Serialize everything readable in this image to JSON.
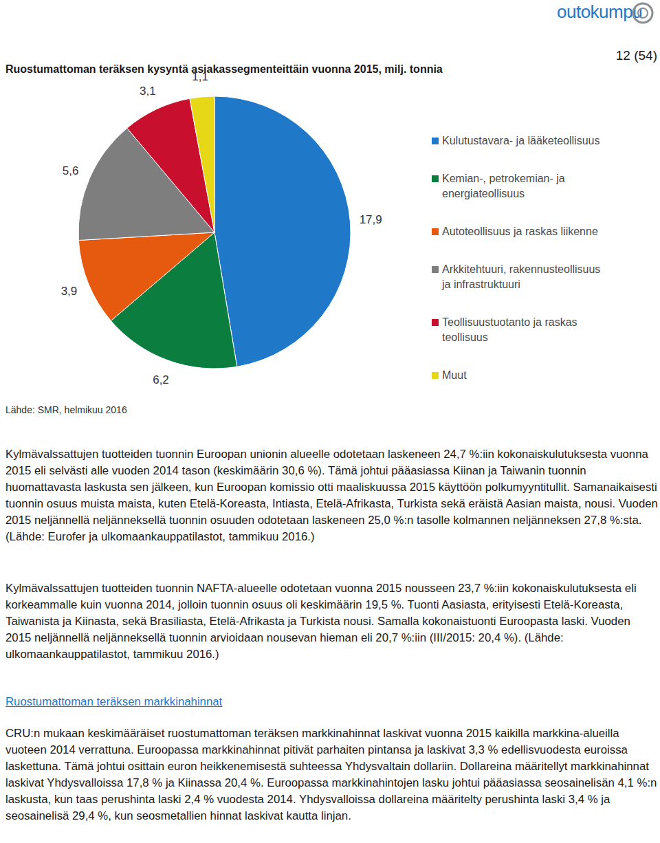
{
  "header": {
    "brand": "outokumpu",
    "page": "12 (54)"
  },
  "chart_data": {
    "type": "pie",
    "title": "Ruostumattoman teräksen kysyntä asiakassegmenteittäin vuonna 2015, milj. tonnia",
    "categories": [
      "Kulutustavara- ja lääketeollisuus",
      "Kemian-, petrokemian- ja energiateollisuus",
      "Autoteollisuus ja raskas liikenne",
      "Arkkitehtuuri, rakennusteollisuus ja infrastruktuuri",
      "Teollisuustuotanto ja raskas teollisuus",
      "Muut"
    ],
    "values": [
      17.9,
      6.2,
      3.9,
      5.6,
      3.1,
      1.1
    ],
    "value_labels": [
      "17,9",
      "6,2",
      "3,9",
      "5,6",
      "3,1",
      "1,1"
    ],
    "colors": [
      "#1f78c8",
      "#0b7d3e",
      "#e55a0e",
      "#7e7e7e",
      "#c8102e",
      "#e6d817"
    ],
    "data_labels": true,
    "legend": "right"
  },
  "chart_source": "Lähde: SMR, helmikuu 2016",
  "section1": {
    "paragraphs": [
      "Kylmävalssattujen tuotteiden tuonnin Euroopan unionin alueelle odotetaan laskeneen 24,7 %:iin kokonaiskulutuksesta vuonna 2015 eli selvästi alle vuoden 2014 tason (keskimäärin 30,6 %). Tämä johtui pääasiassa Kiinan ja Taiwanin tuonnin huomattavasta laskusta sen jälkeen, kun Euroopan komissio otti maaliskuussa 2015 käyttöön polkumyyntitullit. Samanaikaisesti tuonnin osuus muista maista, kuten Etelä-Koreasta, Intiasta, Etelä-Afrikasta, Turkista sekä eräistä Aasian maista, nousi. Vuoden 2015 neljännellä neljänneksellä tuonnin osuuden odotetaan laskeneen 25,0 %:n tasolle kolmannen neljänneksen 27,8 %:sta. (Lähde: Eurofer ja ulkomaankauppatilastot, tammikuu 2016.)",
      "Kylmävalssattujen tuotteiden tuonnin NAFTA-alueelle odotetaan vuonna 2015 nousseen 23,7 %:iin kokonaiskulutuksesta eli korkeammalle kuin vuonna 2014, jolloin tuonnin osuus oli keskimäärin 19,5 %. Tuonti Aasiasta, erityisesti Etelä-Koreasta, Taiwanista ja Kiinasta, sekä Brasiliasta, Etelä-Afrikasta ja Turkista nousi. Samalla kokonaistuonti Euroopasta laski. Vuoden 2015 neljännellä neljänneksellä tuonnin arvioidaan nousevan hieman eli 20,7 %:iin (III/2015: 20,4 %). (Lähde: ulkomaankauppatilastot, tammikuu 2016.)"
    ]
  },
  "section2": {
    "heading": "Ruostumattoman teräksen markkinahinnat",
    "paragraphs": [
      "CRU:n mukaan keskimääräiset ruostumattoman teräksen markkinahinnat laskivat vuonna 2015 kaikilla markkina-alueilla vuoteen 2014 verrattuna. Euroopassa markkinahinnat pitivät parhaiten pintansa ja laskivat 3,3 % edellisvuodesta euroissa laskettuna. Tämä johtui osittain euron heikkenemisestä suhteessa Yhdysvaltain dollariin. Dollareina määritellyt markkinahinnat laskivat Yhdysvalloissa 17,8 % ja Kiinassa 20,4 %. Euroopassa markkinahintojen lasku johtui pääasiassa seosainelisän 4,1 %:n laskusta, kun taas perushinta laski 2,4 % vuodesta 2014. Yhdysvalloissa dollareina määritelty perushinta laski 3,4 % ja seosainelisä 29,4 %, kun seosmetallien hinnat laskivat kautta linjan."
    ]
  }
}
